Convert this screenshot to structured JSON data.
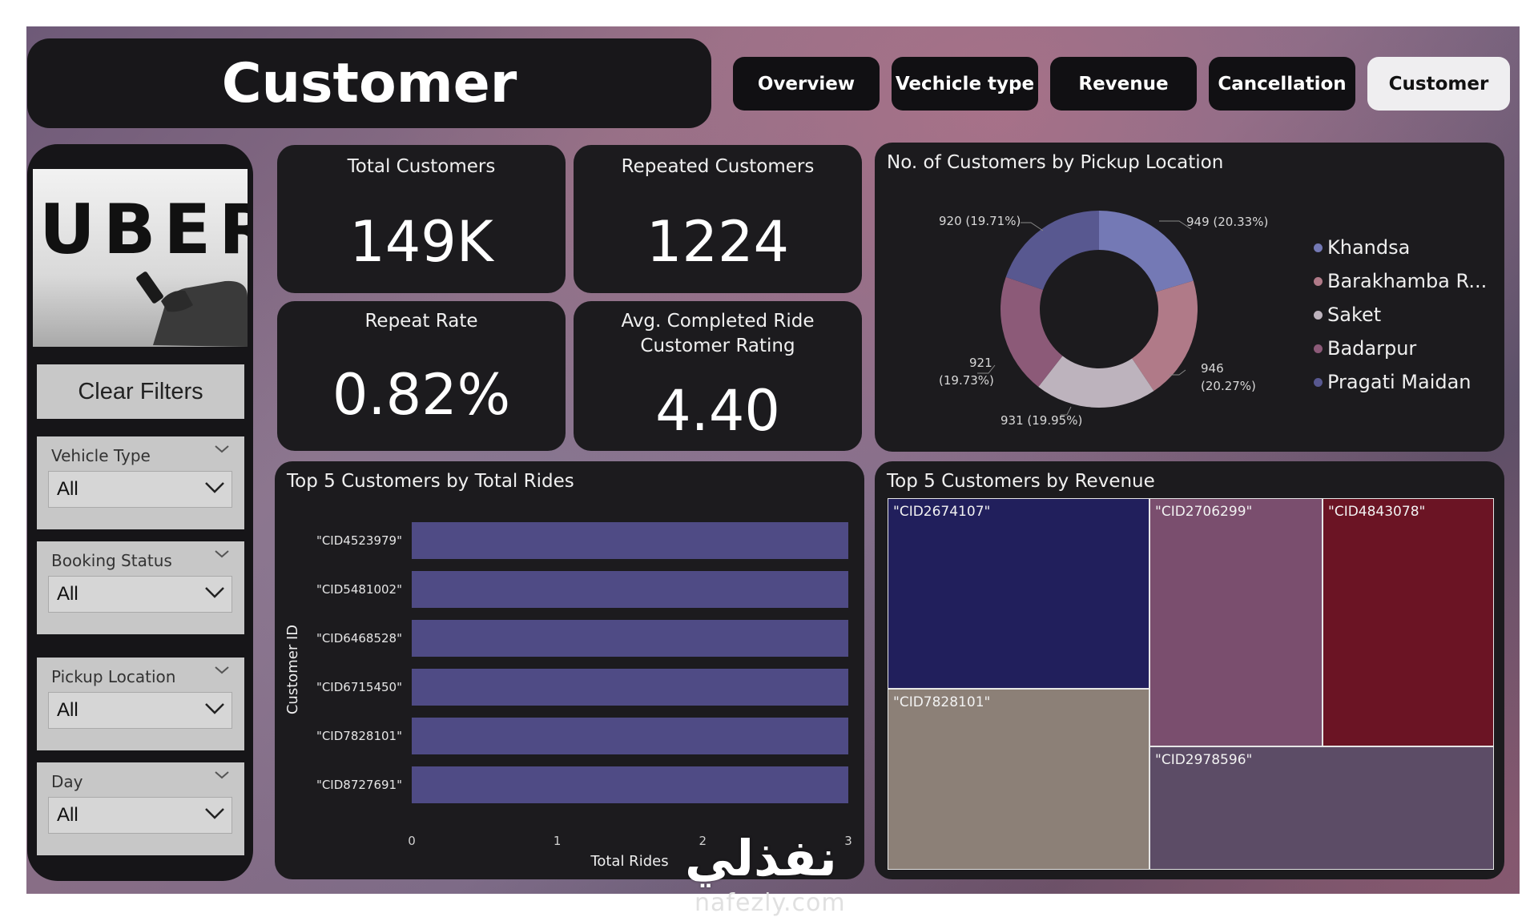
{
  "header": {
    "title": "Customer"
  },
  "nav": [
    {
      "label": "Overview",
      "active": false
    },
    {
      "label": "Vechicle type",
      "active": false
    },
    {
      "label": "Revenue",
      "active": false
    },
    {
      "label": "Cancellation",
      "active": false
    },
    {
      "label": "Customer",
      "active": true
    }
  ],
  "sidebar": {
    "logo_text": "UBER",
    "clear_filters": "Clear Filters",
    "slicers": [
      {
        "label": "Vehicle Type",
        "value": "All"
      },
      {
        "label": "Booking Status",
        "value": "All"
      },
      {
        "label": "Pickup Location",
        "value": "All"
      },
      {
        "label": "Day",
        "value": "All"
      }
    ]
  },
  "kpis": {
    "total_customers": {
      "title": "Total Customers",
      "value": "149K"
    },
    "repeated_customers": {
      "title": "Repeated Customers",
      "value": "1224"
    },
    "repeat_rate": {
      "title": "Repeat Rate",
      "value": "0.82%"
    },
    "avg_rating": {
      "title_line1": "Avg. Completed Ride",
      "title_line2": "Customer Rating",
      "value": "4.40"
    }
  },
  "donut": {
    "title": "No. of Customers by Pickup Location",
    "legend": [
      {
        "name": "Khandsa",
        "color": "#7479b5"
      },
      {
        "name": "Barakhamba R...",
        "color": "#b07a88"
      },
      {
        "name": "Saket",
        "color": "#bdb3bd"
      },
      {
        "name": "Badarpur",
        "color": "#8c5a78"
      },
      {
        "name": "Pragati Maidan",
        "color": "#585890"
      }
    ],
    "labels": {
      "khandsa": "949 (20.33%)",
      "barakhamba": "946",
      "barakhamba_pct": "(20.27%)",
      "saket": "931 (19.95%)",
      "badarpur": "921",
      "badarpur_pct": "(19.73%)",
      "pragati": "920 (19.71%)"
    }
  },
  "bar_chart": {
    "title": "Top 5 Customers by Total Rides",
    "xlabel": "Total Rides",
    "ylabel": "Customer ID",
    "bar_color": "#4f4b85"
  },
  "treemap": {
    "title": "Top 5 Customers by Revenue",
    "cells": [
      {
        "label": "\"CID2674107\"",
        "color": "#211f5c"
      },
      {
        "label": "\"CID2706299\"",
        "color": "#7a4e6e"
      },
      {
        "label": "\"CID4843078\"",
        "color": "#6b1424"
      },
      {
        "label": "\"CID7828101\"",
        "color": "#8c8077"
      },
      {
        "label": "\"CID2978596\"",
        "color": "#5c4c66"
      }
    ]
  },
  "chart_data": [
    {
      "type": "pie",
      "title": "No. of Customers by Pickup Location",
      "categories": [
        "Khandsa",
        "Barakhamba R...",
        "Saket",
        "Badarpur",
        "Pragati Maidan"
      ],
      "values": [
        949,
        946,
        931,
        921,
        920
      ],
      "percent": [
        20.33,
        20.27,
        19.95,
        19.73,
        19.71
      ],
      "legend_position": "right"
    },
    {
      "type": "bar",
      "orientation": "horizontal",
      "title": "Top 5 Customers by Total Rides",
      "categories": [
        "\"CID4523979\"",
        "\"CID5481002\"",
        "\"CID6468528\"",
        "\"CID6715450\"",
        "\"CID7828101\"",
        "\"CID8727691\""
      ],
      "values": [
        3,
        3,
        3,
        3,
        3,
        3
      ],
      "xlabel": "Total Rides",
      "ylabel": "Customer ID",
      "xlim": [
        0,
        3
      ],
      "xticks": [
        "0",
        "1",
        "2",
        "3"
      ]
    }
  ],
  "watermark": {
    "arabic": "نفذلي",
    "latin": "nafezly.com"
  }
}
